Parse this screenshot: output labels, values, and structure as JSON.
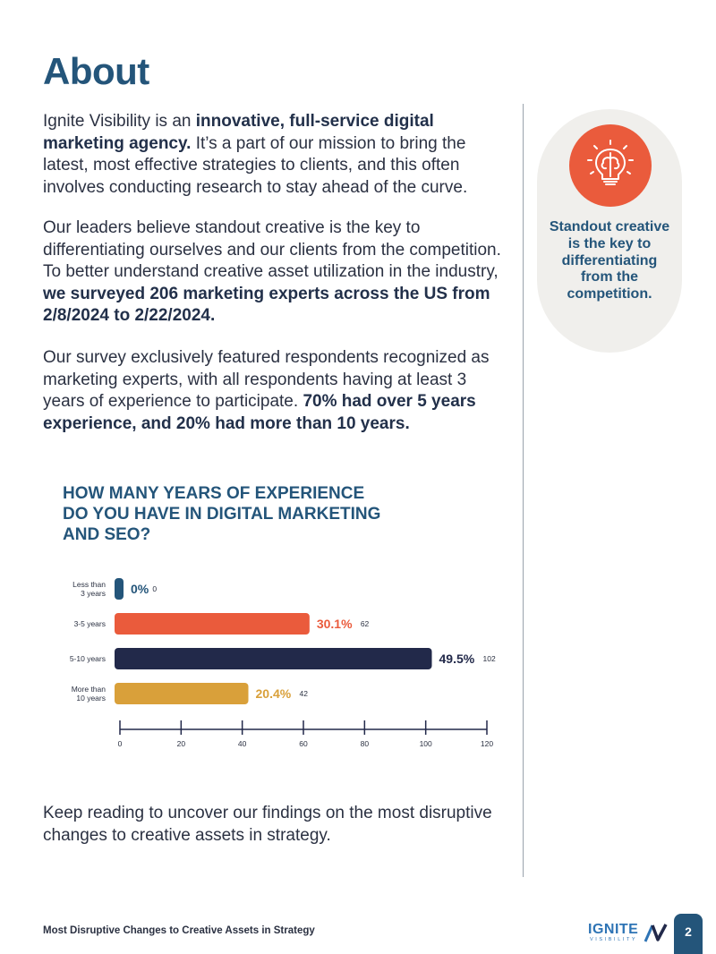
{
  "title": "About",
  "paragraphs": {
    "p1": {
      "a": "Ignite Visibility is an ",
      "b": "innovative, full-service digital marketing agency.",
      "c": " It’s a part of our mission to bring the latest, most effective strategies to clients, and this often involves conducting research to stay ahead of the curve."
    },
    "p2": {
      "a": "Our leaders believe standout creative is the key to differentiating ourselves and our clients from the competition. To better understand creative asset utilization in the industry, ",
      "b": "we surveyed 206 marketing experts across the US from 2/8/2024 to 2/22/2024."
    },
    "p3": {
      "a": "Our survey exclusively featured respondents recognized as marketing experts, with all respondents having at least 3 years of experience to participate. ",
      "b": "70% had over 5 years experience, and 20% had more than 10 years."
    },
    "p4": "Keep reading to uncover our findings on the most disruptive changes to creative assets in strategy."
  },
  "callout": {
    "icon": "brain-lightbulb-icon",
    "text": "Standout creative is the key to differentiating from the competition."
  },
  "chart_data": {
    "type": "bar",
    "orientation": "horizontal",
    "title": "HOW MANY YEARS OF EXPERIENCE DO YOU HAVE IN DIGITAL MARKETING AND SEO?",
    "categories": [
      [
        "Less than",
        "3 years"
      ],
      [
        "3-5 years"
      ],
      [
        "5-10 years"
      ],
      [
        "More than",
        "10 years"
      ]
    ],
    "values": [
      0,
      62,
      102,
      42
    ],
    "percent_labels": [
      "0%",
      "30.1%",
      "49.5%",
      "20.4%"
    ],
    "colors": [
      "#24557a",
      "#ea5b3c",
      "#22294a",
      "#d9a03a"
    ],
    "x_ticks": [
      0,
      20,
      40,
      60,
      80,
      100,
      120
    ],
    "xlim": [
      0,
      120
    ],
    "grid": false
  },
  "footer": {
    "text": "Most Disruptive Changes to Creative Assets in Strategy",
    "logo_word": "IGNITE",
    "logo_sub": "VISIBILITY",
    "page_number": "2"
  }
}
